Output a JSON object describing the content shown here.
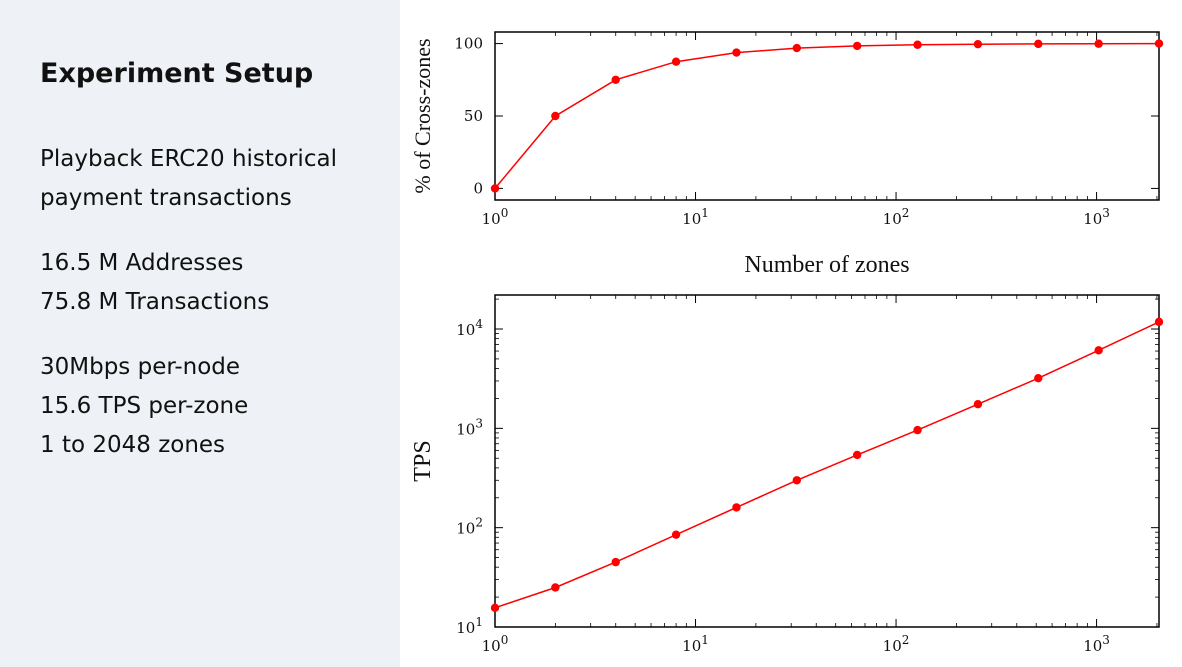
{
  "sidebar": {
    "title": "Experiment Setup",
    "lines": [
      [
        "Playback ERC20 historical",
        "payment transactions"
      ],
      [
        "16.5 M Addresses",
        "75.8 M Transactions"
      ],
      [
        "30Mbps per-node",
        "15.6 TPS per-zone",
        "1 to 2048 zones"
      ]
    ]
  },
  "chart_data": [
    {
      "type": "line",
      "x_scale": "log",
      "y_scale": "linear",
      "xlim": [
        1,
        2048
      ],
      "ylim": [
        -8,
        108
      ],
      "yticks": [
        0,
        50,
        100
      ],
      "xticks": [
        1,
        10,
        100,
        1000
      ],
      "xtick_labels": [
        "10^0",
        "10^1",
        "10^2",
        "10^3"
      ],
      "ylabel": "% of Cross-zones",
      "xlabel": "Number of zones",
      "color": "#ff0000",
      "x": [
        1,
        2,
        4,
        8,
        16,
        32,
        64,
        128,
        256,
        512,
        1024,
        2048
      ],
      "y": [
        0,
        50,
        75,
        87.5,
        93.8,
        96.9,
        98.4,
        99.2,
        99.6,
        99.8,
        99.9,
        100
      ]
    },
    {
      "type": "line",
      "x_scale": "log",
      "y_scale": "log",
      "xlim": [
        1,
        2048
      ],
      "ylim": [
        10,
        22000
      ],
      "yticks": [
        10,
        100,
        1000,
        10000
      ],
      "ytick_labels": [
        "10^1",
        "10^2",
        "10^3",
        "10^4"
      ],
      "xticks": [
        1,
        10,
        100,
        1000
      ],
      "xtick_labels": [
        "10^0",
        "10^1",
        "10^2",
        "10^3"
      ],
      "ylabel": "TPS",
      "xlabel": "",
      "color": "#ff0000",
      "x": [
        1,
        2,
        4,
        8,
        16,
        32,
        64,
        128,
        256,
        512,
        1024,
        2048
      ],
      "y": [
        15.6,
        25,
        45,
        85,
        160,
        300,
        540,
        960,
        1750,
        3200,
        6100,
        11800
      ]
    }
  ]
}
